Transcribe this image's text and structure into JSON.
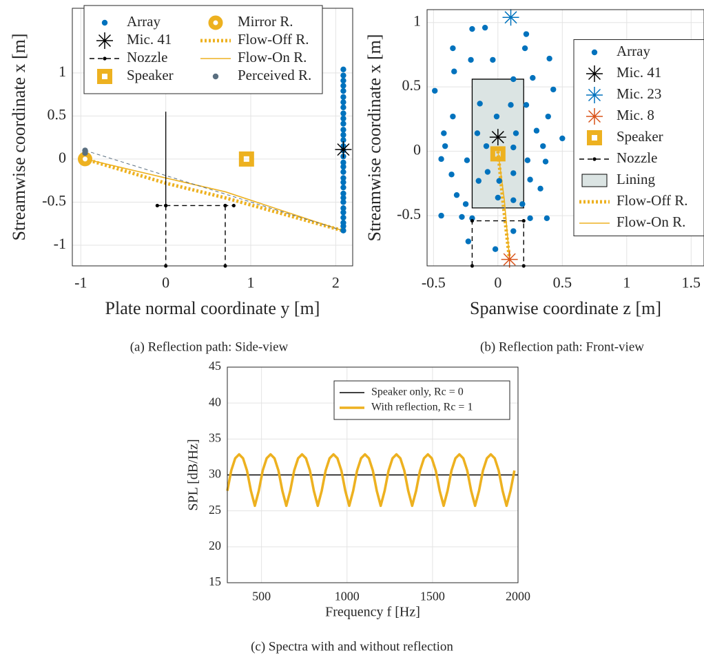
{
  "chart_data": [
    {
      "type": "scatter",
      "caption": "(a) Reflection path: Side-view",
      "xlabel": "Plate normal coordinate y [m]",
      "ylabel": "Streamwise coordinate x [m]",
      "xlim": [
        -1.1,
        2.2
      ],
      "ylim": [
        -1.24,
        1.75
      ],
      "xticks": [
        -1,
        0,
        1,
        2
      ],
      "yticks": [
        -1,
        -0.5,
        0,
        0.5,
        1
      ],
      "grid": true,
      "legend": "upper left",
      "legend_columns": 2,
      "series": [
        {
          "name": "Array",
          "color": "#0072bd",
          "marker": "o",
          "line": "none",
          "x": [
            2.09,
            2.09,
            2.09,
            2.09,
            2.09,
            2.09,
            2.09,
            2.09,
            2.09,
            2.09,
            2.09,
            2.09,
            2.09,
            2.09,
            2.09,
            2.09,
            2.09,
            2.09,
            2.09,
            2.09,
            2.09,
            2.09,
            2.09,
            2.09,
            2.09,
            2.09,
            2.09,
            2.09,
            2.09,
            2.09,
            2.09,
            2.09
          ],
          "values": [
            -0.83,
            -0.78,
            -0.74,
            -0.68,
            -0.62,
            -0.57,
            -0.5,
            -0.45,
            -0.4,
            -0.33,
            -0.27,
            -0.22,
            -0.15,
            -0.09,
            -0.04,
            0.03,
            0.1,
            0.15,
            0.22,
            0.28,
            0.34,
            0.41,
            0.47,
            0.53,
            0.6,
            0.66,
            0.72,
            0.79,
            0.85,
            0.91,
            0.97,
            1.04
          ]
        },
        {
          "name": "Mic. 41",
          "color": "#000000",
          "marker": "*",
          "line": "none",
          "x": [
            2.09
          ],
          "values": [
            0.11
          ]
        },
        {
          "name": "Nozzle",
          "color": "#000000",
          "marker": "dot",
          "line": "dash",
          "x": [
            -0.1,
            0,
            0.7,
            0.8,
            null,
            0,
            0,
            null,
            0.7,
            0.7
          ],
          "values": [
            -0.54,
            -0.54,
            -0.54,
            -0.54,
            null,
            -0.54,
            -1.24,
            null,
            -0.54,
            -1.24
          ]
        },
        {
          "name": "Speaker",
          "color": "#edb120",
          "marker": "s",
          "line": "none",
          "x": [
            0.95
          ],
          "values": [
            0
          ]
        },
        {
          "name": "Mirror R.",
          "color": "#edb120",
          "marker": "ring",
          "line": "none",
          "x": [
            -0.95
          ],
          "values": [
            0
          ]
        },
        {
          "name": "Flow-Off R.",
          "color": "#edb120",
          "marker": "none",
          "line": "dot",
          "x": [
            -0.95,
            0,
            0.7,
            2.08
          ],
          "values": [
            0,
            -0.28,
            -0.45,
            -0.83
          ]
        },
        {
          "name": "Flow-On R.",
          "color": "#edb120",
          "marker": "none",
          "line": "solid",
          "x": [
            -0.95,
            0,
            0.7,
            2.08
          ],
          "values": [
            0,
            -0.22,
            -0.38,
            -0.83
          ]
        },
        {
          "name": "Perceived R.",
          "color": "#5a6f80",
          "marker": "o",
          "line": "none",
          "x": [
            -0.95,
            -0.95
          ],
          "values": [
            0.1,
            0.07
          ]
        },
        {
          "color": "#000000",
          "marker": "none",
          "line": "thin",
          "x": [
            0,
            0
          ],
          "values": [
            0.55,
            -0.54
          ]
        },
        {
          "color": "#5a6f80",
          "marker": "none",
          "line": "thindash",
          "x": [
            -0.95,
            2.08
          ],
          "values": [
            0.1,
            -0.83
          ]
        }
      ]
    },
    {
      "type": "scatter",
      "caption": "(b) Reflection path: Front-view",
      "xlabel": "Spanwise coordinate z [m]",
      "ylabel": "Streamwise coordinate x [m]",
      "xlim": [
        -0.55,
        1.6
      ],
      "ylim": [
        -0.89,
        1.1
      ],
      "xticks": [
        -0.5,
        0,
        0.5,
        1,
        1.5
      ],
      "yticks": [
        -0.5,
        0,
        0.5,
        1
      ],
      "grid": true,
      "legend": "right",
      "legend_columns": 1,
      "series": [
        {
          "name": "Array",
          "color": "#0072bd",
          "marker": "o",
          "line": "none",
          "x": [
            -0.2,
            -0.1,
            0.22,
            -0.35,
            -0.21,
            -0.04,
            0.21,
            0.4,
            -0.34,
            0.12,
            0.27,
            -0.49,
            -0.14,
            0.1,
            0.43,
            -0.35,
            -0.01,
            0.22,
            0.39,
            -0.42,
            -0.16,
            0.14,
            0.3,
            -0.41,
            -0.09,
            0.12,
            0.35,
            0.5,
            -0.44,
            -0.24,
            0.23,
            0.37,
            -0.36,
            -0.08,
            0.12,
            0.25,
            -0.32,
            -0.15,
            0.01,
            0.33,
            -0.25,
            0,
            0.12,
            0.19,
            -0.44,
            -0.28,
            -0.2,
            0.25,
            0.38,
            -0.23,
            -0.02,
            0.12
          ],
          "values": [
            0.95,
            0.96,
            0.91,
            0.8,
            0.71,
            0.71,
            0.8,
            0.72,
            0.62,
            0.56,
            0.57,
            0.47,
            0.37,
            0.36,
            0.48,
            0.27,
            0.27,
            0.36,
            0.27,
            0.14,
            0.14,
            0.14,
            0.16,
            0.04,
            0.04,
            0.03,
            0.04,
            0.1,
            -0.06,
            -0.07,
            -0.07,
            -0.08,
            -0.18,
            -0.16,
            -0.17,
            -0.22,
            -0.34,
            -0.23,
            -0.23,
            -0.29,
            -0.41,
            -0.36,
            -0.38,
            -0.41,
            -0.5,
            -0.51,
            -0.52,
            -0.52,
            -0.52,
            -0.7,
            -0.76,
            -0.62
          ]
        },
        {
          "name": "Mic. 41",
          "color": "#000000",
          "marker": "*",
          "line": "none",
          "x": [
            0
          ],
          "values": [
            0.11
          ]
        },
        {
          "name": "Mic. 23",
          "color": "#0072bd",
          "marker": "*",
          "line": "none",
          "x": [
            0.1
          ],
          "values": [
            1.04
          ]
        },
        {
          "name": "Mic. 8",
          "color": "#d95319",
          "marker": "*",
          "line": "none",
          "x": [
            0.09
          ],
          "values": [
            -0.84
          ]
        },
        {
          "name": "Speaker",
          "color": "#edb120",
          "marker": "s",
          "line": "none",
          "x": [
            0
          ],
          "values": [
            -0.02
          ]
        },
        {
          "name": "Nozzle",
          "color": "#000000",
          "marker": "dot",
          "line": "dash",
          "x": [
            -0.2,
            -0.2,
            0.2,
            0.2
          ],
          "values": [
            -0.89,
            -0.54,
            -0.54,
            -0.89
          ]
        },
        {
          "name": "Lining",
          "color": "#dbe4e3",
          "edge": "#000000",
          "marker": "none",
          "line": "area",
          "x": [
            -0.2,
            0.2,
            0.2,
            -0.2,
            -0.2
          ],
          "values": [
            -0.44,
            -0.44,
            0.56,
            0.56,
            -0.44
          ]
        },
        {
          "name": "Flow-Off R.",
          "color": "#edb120",
          "marker": "none",
          "line": "dot",
          "x": [
            0,
            0.04,
            0.09
          ],
          "values": [
            0,
            -0.4,
            -0.84
          ]
        },
        {
          "name": "Flow-On R.",
          "color": "#edb120",
          "marker": "none",
          "line": "solid",
          "x": [
            0,
            0.05,
            0.09
          ],
          "values": [
            0,
            -0.38,
            -0.84
          ]
        }
      ]
    },
    {
      "type": "line",
      "caption": "(c) Spectra with and without reflection",
      "xlabel": "Frequency f [Hz]",
      "ylabel": "SPL [dB/Hz]",
      "xlim": [
        300,
        2000
      ],
      "ylim": [
        15,
        45
      ],
      "xticks": [
        500,
        1000,
        1500,
        2000
      ],
      "yticks": [
        15,
        20,
        25,
        30,
        35,
        40,
        45
      ],
      "grid": true,
      "legend": "upper right",
      "legend_columns": 1,
      "series": [
        {
          "name": "Speaker only, Rc = 0",
          "color": "#000000",
          "marker": "none",
          "line": "solid",
          "x": [
            300,
            2000
          ],
          "values": [
            30,
            30
          ]
        },
        {
          "name": "With reflection, Rc = 1",
          "color": "#edb120",
          "marker": "none",
          "line": "thick",
          "x": [
            300,
            323,
            346,
            369,
            392,
            415,
            438,
            461,
            484,
            507,
            530,
            553,
            576,
            599,
            622,
            645,
            668,
            691,
            714,
            737,
            760,
            783,
            806,
            829,
            852,
            875,
            898,
            921,
            944,
            967,
            990,
            1013,
            1036,
            1059,
            1082,
            1105,
            1128,
            1151,
            1174,
            1197,
            1220,
            1243,
            1266,
            1289,
            1312,
            1335,
            1358,
            1381,
            1404,
            1427,
            1450,
            1473,
            1496,
            1519,
            1542,
            1565,
            1588,
            1611,
            1634,
            1657,
            1680,
            1703,
            1726,
            1749,
            1772,
            1795,
            1818,
            1841,
            1864,
            1887,
            1910,
            1933,
            1956,
            1979
          ],
          "values": [
            27.79,
            30.61,
            32.31,
            32.86,
            32.31,
            30.61,
            27.79,
            25.71,
            27.79,
            30.61,
            32.31,
            32.86,
            32.31,
            30.61,
            27.79,
            25.71,
            27.79,
            30.61,
            32.31,
            32.86,
            32.31,
            30.61,
            27.79,
            25.71,
            27.79,
            30.61,
            32.31,
            32.86,
            32.31,
            30.61,
            27.79,
            25.71,
            27.79,
            30.61,
            32.31,
            32.86,
            32.31,
            30.61,
            27.79,
            25.71,
            27.79,
            30.61,
            32.31,
            32.86,
            32.31,
            30.61,
            27.79,
            25.71,
            27.79,
            30.61,
            32.31,
            32.86,
            32.31,
            30.61,
            27.79,
            25.71,
            27.79,
            30.61,
            32.31,
            32.86,
            32.31,
            30.61,
            27.79,
            25.71,
            27.79,
            30.61,
            32.31,
            32.86,
            32.31,
            30.61,
            27.79,
            25.71,
            27.79,
            30.61
          ]
        }
      ]
    }
  ]
}
